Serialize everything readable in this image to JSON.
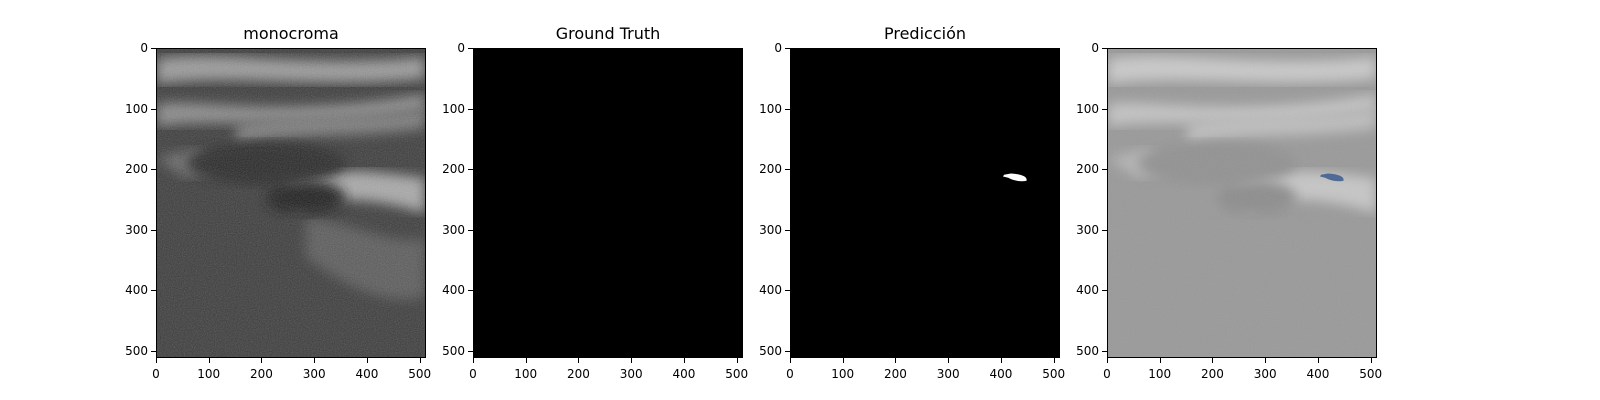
{
  "figure": {
    "panels": [
      {
        "title": "monocroma",
        "kind": "ultrasound-grayscale"
      },
      {
        "title": "Ground Truth",
        "kind": "mask-empty"
      },
      {
        "title": "Predicción",
        "kind": "mask-prediction"
      },
      {
        "title": "",
        "kind": "overlay"
      }
    ],
    "y_ticks": [
      "0",
      "100",
      "200",
      "300",
      "400",
      "500"
    ],
    "x_ticks": [
      "0",
      "100",
      "200",
      "300",
      "400",
      "500"
    ],
    "image_extent": [
      512,
      512
    ],
    "overlay_color": "#4f6a95",
    "mask_color": "#ffffff",
    "background_mask_color": "#000000"
  }
}
